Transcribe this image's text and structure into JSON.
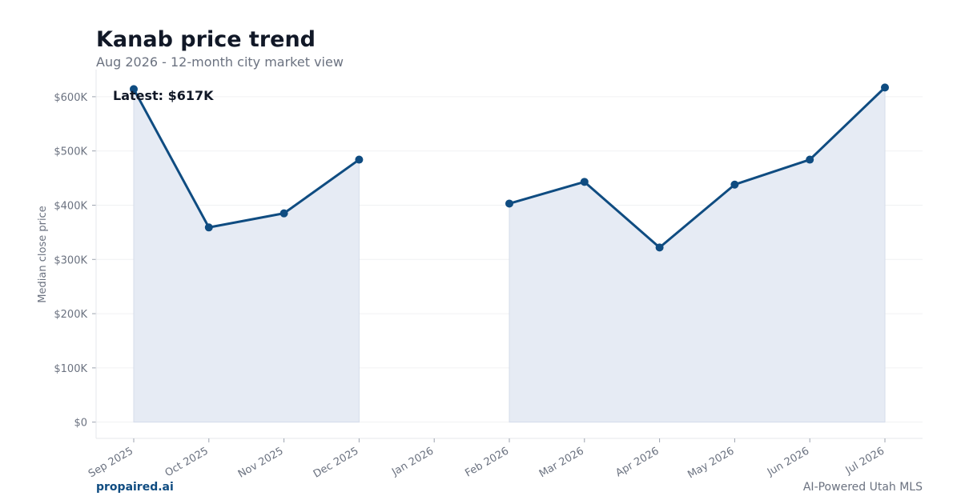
{
  "header": {
    "title": "Kanab price trend",
    "subtitle": "Aug 2026 - 12-month city market view"
  },
  "footer": {
    "brand": "propaired.ai",
    "tagline": "AI-Powered Utah MLS"
  },
  "colors": {
    "line": "#0f4c81",
    "fill": "#e6ebf4",
    "grid": "#f0f1f3",
    "axis": "#e5e7eb"
  },
  "chart_data": {
    "type": "line",
    "title": "Kanab price trend",
    "subtitle": "Aug 2026 - 12-month city market view",
    "xlabel": "",
    "ylabel": "Median close price",
    "categories": [
      "Sep 2025",
      "Oct 2025",
      "Nov 2025",
      "Dec 2025",
      "Jan 2026",
      "Feb 2026",
      "Mar 2026",
      "Apr 2026",
      "May 2026",
      "Jun 2026",
      "Jul 2026"
    ],
    "values": [
      614000,
      359000,
      385000,
      484000,
      null,
      403000,
      443000,
      322000,
      438000,
      484000,
      617000
    ],
    "ylim": [
      -30000,
      650000
    ],
    "yticks": [
      0,
      100000,
      200000,
      300000,
      400000,
      500000,
      600000
    ],
    "ytick_labels": [
      "$0",
      "$100K",
      "$200K",
      "$300K",
      "$400K",
      "$500K",
      "$600K"
    ],
    "grid": true,
    "annotation": "Latest: $617K"
  }
}
